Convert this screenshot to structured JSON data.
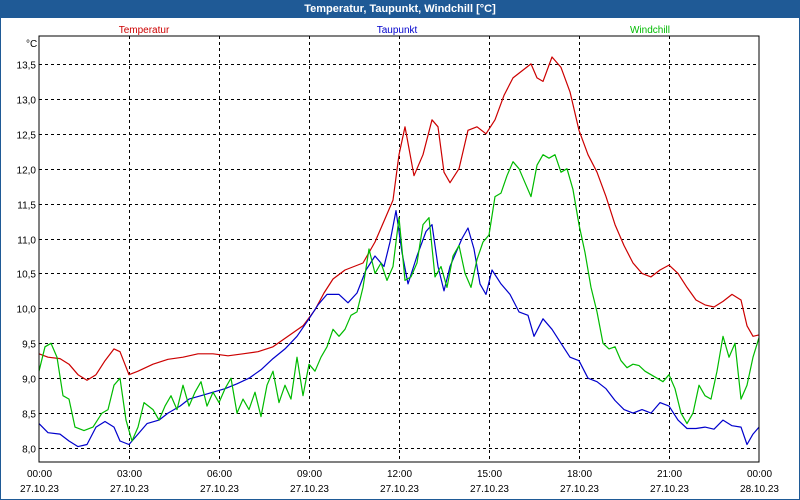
{
  "window": {
    "title": "Temperatur, Taupunkt, Windchill [°C]"
  },
  "chart_data": {
    "type": "line",
    "title": "Temperatur, Taupunkt, Windchill [°C]",
    "ylabel": "°C",
    "xlabel": "",
    "ylim": [
      7.8,
      13.9
    ],
    "xlim": [
      0,
      24
    ],
    "grid": true,
    "legend_placement": "top",
    "y_ticks": [
      "8,0",
      "8,5",
      "9,0",
      "9,5",
      "10,0",
      "10,5",
      "11,0",
      "11,5",
      "12,0",
      "12,5",
      "13,0",
      "13,5"
    ],
    "y_tick_values": [
      8.0,
      8.5,
      9.0,
      9.5,
      10.0,
      10.5,
      11.0,
      11.5,
      12.0,
      12.5,
      13.0,
      13.5
    ],
    "x_ticks": [
      {
        "time": "00:00",
        "date": "27.10.23"
      },
      {
        "time": "03:00",
        "date": "27.10.23"
      },
      {
        "time": "06:00",
        "date": "27.10.23"
      },
      {
        "time": "09:00",
        "date": "27.10.23"
      },
      {
        "time": "12:00",
        "date": "27.10.23"
      },
      {
        "time": "15:00",
        "date": "27.10.23"
      },
      {
        "time": "18:00",
        "date": "27.10.23"
      },
      {
        "time": "21:00",
        "date": "27.10.23"
      },
      {
        "time": "00:00",
        "date": "28.10.23"
      }
    ],
    "series": [
      {
        "name": "Temperatur",
        "color": "#cc0000",
        "points": [
          [
            0,
            9.35
          ],
          [
            0.3,
            9.3
          ],
          [
            0.7,
            9.28
          ],
          [
            1.0,
            9.2
          ],
          [
            1.3,
            9.05
          ],
          [
            1.6,
            8.97
          ],
          [
            1.9,
            9.05
          ],
          [
            2.2,
            9.25
          ],
          [
            2.5,
            9.42
          ],
          [
            2.7,
            9.38
          ],
          [
            3.0,
            9.05
          ],
          [
            3.3,
            9.1
          ],
          [
            3.8,
            9.2
          ],
          [
            4.3,
            9.27
          ],
          [
            4.8,
            9.3
          ],
          [
            5.3,
            9.35
          ],
          [
            5.8,
            9.35
          ],
          [
            6.3,
            9.32
          ],
          [
            6.8,
            9.35
          ],
          [
            7.3,
            9.38
          ],
          [
            7.8,
            9.45
          ],
          [
            8.3,
            9.6
          ],
          [
            8.8,
            9.75
          ],
          [
            9.2,
            9.98
          ],
          [
            9.5,
            10.22
          ],
          [
            9.8,
            10.42
          ],
          [
            10.2,
            10.55
          ],
          [
            10.5,
            10.6
          ],
          [
            10.8,
            10.65
          ],
          [
            11.2,
            10.95
          ],
          [
            11.5,
            11.25
          ],
          [
            11.8,
            11.55
          ],
          [
            12.0,
            12.2
          ],
          [
            12.2,
            12.6
          ],
          [
            12.5,
            11.9
          ],
          [
            12.8,
            12.2
          ],
          [
            13.1,
            12.7
          ],
          [
            13.3,
            12.6
          ],
          [
            13.5,
            11.95
          ],
          [
            13.7,
            11.8
          ],
          [
            14.0,
            12.0
          ],
          [
            14.3,
            12.55
          ],
          [
            14.6,
            12.6
          ],
          [
            14.9,
            12.5
          ],
          [
            15.2,
            12.7
          ],
          [
            15.5,
            13.05
          ],
          [
            15.8,
            13.3
          ],
          [
            16.1,
            13.4
          ],
          [
            16.4,
            13.5
          ],
          [
            16.6,
            13.3
          ],
          [
            16.8,
            13.25
          ],
          [
            17.1,
            13.6
          ],
          [
            17.4,
            13.45
          ],
          [
            17.7,
            13.1
          ],
          [
            18.0,
            12.55
          ],
          [
            18.3,
            12.2
          ],
          [
            18.6,
            11.95
          ],
          [
            18.9,
            11.6
          ],
          [
            19.2,
            11.2
          ],
          [
            19.5,
            10.9
          ],
          [
            19.8,
            10.65
          ],
          [
            20.1,
            10.5
          ],
          [
            20.4,
            10.45
          ],
          [
            20.7,
            10.55
          ],
          [
            21.0,
            10.62
          ],
          [
            21.3,
            10.5
          ],
          [
            21.6,
            10.3
          ],
          [
            21.9,
            10.12
          ],
          [
            22.2,
            10.05
          ],
          [
            22.5,
            10.02
          ],
          [
            22.8,
            10.1
          ],
          [
            23.1,
            10.2
          ],
          [
            23.4,
            10.12
          ],
          [
            23.6,
            9.75
          ],
          [
            23.8,
            9.6
          ],
          [
            24.0,
            9.62
          ]
        ]
      },
      {
        "name": "Taupunkt",
        "color": "#0000cc",
        "points": [
          [
            0,
            8.35
          ],
          [
            0.3,
            8.22
          ],
          [
            0.7,
            8.2
          ],
          [
            1.0,
            8.1
          ],
          [
            1.3,
            8.02
          ],
          [
            1.6,
            8.05
          ],
          [
            1.9,
            8.3
          ],
          [
            2.2,
            8.38
          ],
          [
            2.5,
            8.3
          ],
          [
            2.7,
            8.1
          ],
          [
            3.0,
            8.05
          ],
          [
            3.3,
            8.2
          ],
          [
            3.6,
            8.35
          ],
          [
            4.0,
            8.4
          ],
          [
            4.3,
            8.5
          ],
          [
            4.7,
            8.6
          ],
          [
            5.0,
            8.7
          ],
          [
            5.4,
            8.75
          ],
          [
            5.8,
            8.8
          ],
          [
            6.2,
            8.85
          ],
          [
            6.6,
            8.92
          ],
          [
            7.0,
            9.0
          ],
          [
            7.4,
            9.12
          ],
          [
            7.8,
            9.28
          ],
          [
            8.2,
            9.42
          ],
          [
            8.6,
            9.6
          ],
          [
            9.0,
            9.85
          ],
          [
            9.3,
            10.05
          ],
          [
            9.6,
            10.2
          ],
          [
            10.0,
            10.2
          ],
          [
            10.3,
            10.08
          ],
          [
            10.6,
            10.22
          ],
          [
            10.9,
            10.55
          ],
          [
            11.2,
            10.75
          ],
          [
            11.5,
            10.6
          ],
          [
            11.7,
            10.95
          ],
          [
            11.9,
            11.4
          ],
          [
            12.1,
            10.8
          ],
          [
            12.3,
            10.35
          ],
          [
            12.6,
            10.75
          ],
          [
            12.9,
            11.1
          ],
          [
            13.1,
            11.2
          ],
          [
            13.3,
            10.6
          ],
          [
            13.5,
            10.25
          ],
          [
            13.7,
            10.6
          ],
          [
            13.9,
            10.8
          ],
          [
            14.1,
            11.0
          ],
          [
            14.3,
            11.15
          ],
          [
            14.5,
            10.85
          ],
          [
            14.7,
            10.35
          ],
          [
            14.9,
            10.2
          ],
          [
            15.1,
            10.55
          ],
          [
            15.4,
            10.35
          ],
          [
            15.7,
            10.2
          ],
          [
            16.0,
            9.95
          ],
          [
            16.3,
            9.9
          ],
          [
            16.5,
            9.6
          ],
          [
            16.8,
            9.85
          ],
          [
            17.1,
            9.7
          ],
          [
            17.4,
            9.5
          ],
          [
            17.7,
            9.3
          ],
          [
            18.0,
            9.25
          ],
          [
            18.3,
            9.0
          ],
          [
            18.6,
            8.95
          ],
          [
            18.9,
            8.85
          ],
          [
            19.2,
            8.68
          ],
          [
            19.5,
            8.55
          ],
          [
            19.8,
            8.5
          ],
          [
            20.1,
            8.55
          ],
          [
            20.4,
            8.5
          ],
          [
            20.7,
            8.65
          ],
          [
            21.0,
            8.6
          ],
          [
            21.3,
            8.4
          ],
          [
            21.6,
            8.28
          ],
          [
            21.9,
            8.28
          ],
          [
            22.2,
            8.3
          ],
          [
            22.5,
            8.27
          ],
          [
            22.8,
            8.4
          ],
          [
            23.1,
            8.32
          ],
          [
            23.4,
            8.3
          ],
          [
            23.6,
            8.05
          ],
          [
            23.8,
            8.2
          ],
          [
            24.0,
            8.3
          ]
        ]
      },
      {
        "name": "Windchill",
        "color": "#00bb00",
        "points": [
          [
            0,
            9.1
          ],
          [
            0.2,
            9.45
          ],
          [
            0.4,
            9.5
          ],
          [
            0.6,
            9.3
          ],
          [
            0.8,
            8.75
          ],
          [
            1.0,
            8.7
          ],
          [
            1.2,
            8.3
          ],
          [
            1.5,
            8.25
          ],
          [
            1.8,
            8.3
          ],
          [
            2.1,
            8.5
          ],
          [
            2.3,
            8.55
          ],
          [
            2.5,
            8.9
          ],
          [
            2.7,
            9.0
          ],
          [
            2.9,
            8.4
          ],
          [
            3.1,
            8.1
          ],
          [
            3.3,
            8.3
          ],
          [
            3.5,
            8.65
          ],
          [
            3.8,
            8.55
          ],
          [
            4.0,
            8.4
          ],
          [
            4.2,
            8.6
          ],
          [
            4.4,
            8.75
          ],
          [
            4.6,
            8.55
          ],
          [
            4.8,
            8.9
          ],
          [
            5.0,
            8.6
          ],
          [
            5.2,
            8.8
          ],
          [
            5.4,
            8.95
          ],
          [
            5.6,
            8.6
          ],
          [
            5.8,
            8.8
          ],
          [
            6.0,
            8.65
          ],
          [
            6.2,
            8.85
          ],
          [
            6.4,
            9.0
          ],
          [
            6.6,
            8.5
          ],
          [
            6.8,
            8.7
          ],
          [
            7.0,
            8.55
          ],
          [
            7.2,
            8.8
          ],
          [
            7.4,
            8.45
          ],
          [
            7.6,
            8.9
          ],
          [
            7.8,
            9.1
          ],
          [
            8.0,
            8.65
          ],
          [
            8.2,
            8.9
          ],
          [
            8.4,
            8.7
          ],
          [
            8.6,
            9.3
          ],
          [
            8.8,
            8.75
          ],
          [
            9.0,
            9.2
          ],
          [
            9.2,
            9.1
          ],
          [
            9.4,
            9.3
          ],
          [
            9.6,
            9.45
          ],
          [
            9.8,
            9.7
          ],
          [
            10.0,
            9.6
          ],
          [
            10.2,
            9.7
          ],
          [
            10.4,
            9.9
          ],
          [
            10.6,
            9.95
          ],
          [
            10.8,
            10.3
          ],
          [
            11.0,
            10.85
          ],
          [
            11.2,
            10.5
          ],
          [
            11.4,
            10.65
          ],
          [
            11.6,
            10.4
          ],
          [
            11.8,
            10.6
          ],
          [
            12.0,
            11.3
          ],
          [
            12.2,
            10.4
          ],
          [
            12.4,
            10.45
          ],
          [
            12.6,
            10.65
          ],
          [
            12.8,
            11.2
          ],
          [
            13.0,
            11.3
          ],
          [
            13.2,
            10.45
          ],
          [
            13.4,
            10.6
          ],
          [
            13.6,
            10.3
          ],
          [
            13.8,
            10.75
          ],
          [
            14.0,
            10.9
          ],
          [
            14.2,
            10.5
          ],
          [
            14.4,
            10.3
          ],
          [
            14.6,
            10.7
          ],
          [
            14.8,
            10.95
          ],
          [
            15.0,
            11.05
          ],
          [
            15.2,
            11.6
          ],
          [
            15.4,
            11.65
          ],
          [
            15.6,
            11.9
          ],
          [
            15.8,
            12.1
          ],
          [
            16.0,
            12.0
          ],
          [
            16.2,
            11.8
          ],
          [
            16.4,
            11.6
          ],
          [
            16.6,
            12.05
          ],
          [
            16.8,
            12.2
          ],
          [
            17.0,
            12.15
          ],
          [
            17.2,
            12.2
          ],
          [
            17.4,
            11.95
          ],
          [
            17.6,
            12.0
          ],
          [
            17.8,
            11.7
          ],
          [
            18.0,
            11.2
          ],
          [
            18.2,
            10.8
          ],
          [
            18.4,
            10.3
          ],
          [
            18.6,
            9.95
          ],
          [
            18.8,
            9.5
          ],
          [
            19.0,
            9.42
          ],
          [
            19.2,
            9.45
          ],
          [
            19.4,
            9.25
          ],
          [
            19.6,
            9.15
          ],
          [
            19.8,
            9.2
          ],
          [
            20.0,
            9.18
          ],
          [
            20.2,
            9.1
          ],
          [
            20.4,
            9.05
          ],
          [
            20.6,
            9.0
          ],
          [
            20.8,
            8.95
          ],
          [
            21.0,
            9.05
          ],
          [
            21.2,
            8.85
          ],
          [
            21.4,
            8.5
          ],
          [
            21.6,
            8.35
          ],
          [
            21.8,
            8.5
          ],
          [
            22.0,
            8.9
          ],
          [
            22.2,
            8.75
          ],
          [
            22.4,
            8.7
          ],
          [
            22.6,
            9.1
          ],
          [
            22.8,
            9.6
          ],
          [
            23.0,
            9.3
          ],
          [
            23.2,
            9.5
          ],
          [
            23.4,
            8.7
          ],
          [
            23.6,
            8.9
          ],
          [
            23.8,
            9.3
          ],
          [
            24.0,
            9.58
          ]
        ]
      }
    ]
  }
}
